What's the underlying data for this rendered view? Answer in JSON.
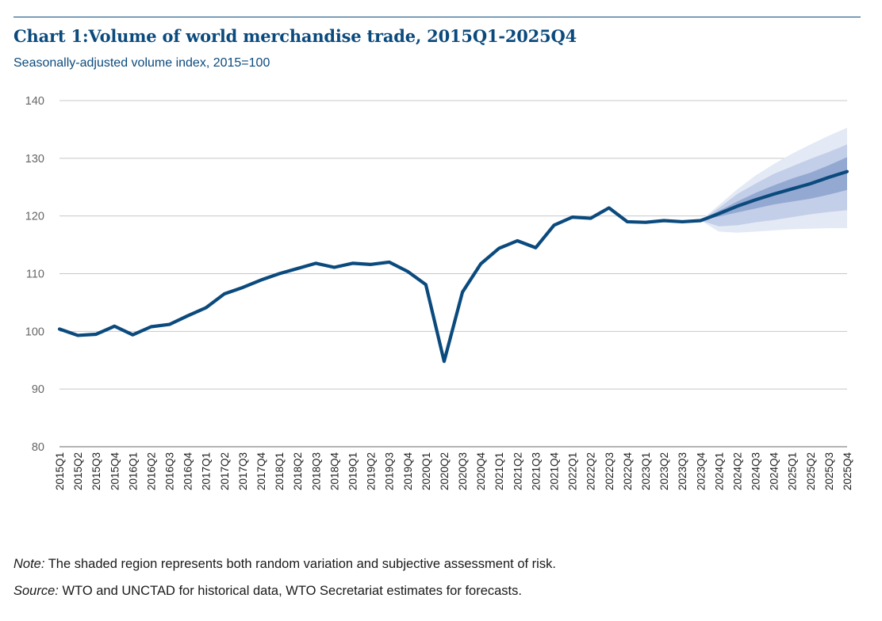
{
  "header": {
    "title": "Chart 1:Volume of world merchandise trade, 2015Q1-2025Q4",
    "subtitle": "Seasonally-adjusted volume index, 2015=100"
  },
  "footer": {
    "note_label": "Note:",
    "note_text": " The shaded region represents both random variation and subjective assessment of risk.",
    "source_label": "Source:",
    "source_text": " WTO and UNCTAD for historical data, WTO Secretariat estimates for forecasts."
  },
  "colors": {
    "line": "#0b4a7d",
    "grid": "#c8c8c8",
    "axis": "#888888",
    "tick_text": "#666666",
    "band_outer": "#e3e9f5",
    "band_mid": "#c3cfe8",
    "band_inner": "#94a9d2"
  },
  "chart_data": {
    "type": "line",
    "title": "Chart 1:Volume of world merchandise trade, 2015Q1-2025Q4",
    "subtitle": "Seasonally-adjusted volume index, 2015=100",
    "xlabel": "",
    "ylabel": "",
    "ylim": [
      80,
      140
    ],
    "yticks": [
      80,
      90,
      100,
      110,
      120,
      130,
      140
    ],
    "grid": true,
    "legend": "none",
    "categories": [
      "2015Q1",
      "2015Q2",
      "2015Q3",
      "2015Q4",
      "2016Q1",
      "2016Q2",
      "2016Q3",
      "2016Q4",
      "2017Q1",
      "2017Q2",
      "2017Q3",
      "2017Q4",
      "2018Q1",
      "2018Q2",
      "2018Q3",
      "2018Q4",
      "2019Q1",
      "2019Q2",
      "2019Q3",
      "2019Q4",
      "2020Q1",
      "2020Q2",
      "2020Q3",
      "2020Q4",
      "2021Q1",
      "2021Q2",
      "2021Q3",
      "2021Q4",
      "2022Q1",
      "2022Q2",
      "2022Q3",
      "2022Q4",
      "2023Q1",
      "2023Q2",
      "2023Q3",
      "2023Q4",
      "2024Q1",
      "2024Q2",
      "2024Q3",
      "2024Q4",
      "2025Q1",
      "2025Q2",
      "2025Q3",
      "2025Q4"
    ],
    "series": [
      {
        "values": [
          100.4,
          99.3,
          99.5,
          100.9,
          99.4,
          100.8,
          101.2,
          102.7,
          104.1,
          106.5,
          107.6,
          108.9,
          110.0,
          110.9,
          111.8,
          111.1,
          111.8,
          111.6,
          112.0,
          110.4,
          108.1,
          94.8,
          106.8,
          111.7,
          114.4,
          115.7,
          114.5,
          118.4,
          119.8,
          119.6,
          121.4,
          119.0,
          118.9,
          119.2,
          119.0,
          119.2,
          120.4,
          121.7,
          122.8,
          123.8,
          124.7,
          125.6,
          126.7,
          127.7
        ]
      }
    ],
    "forecast_bands": {
      "start_category": "2023Q4",
      "outer": {
        "upper": [
          119.2,
          121.9,
          124.6,
          127.0,
          129.0,
          130.8,
          132.4,
          133.9,
          135.3
        ],
        "lower": [
          119.2,
          117.3,
          117.1,
          117.3,
          117.5,
          117.7,
          117.8,
          117.9,
          117.9
        ]
      },
      "mid": {
        "upper": [
          119.2,
          121.4,
          123.8,
          125.6,
          127.3,
          128.6,
          129.9,
          131.1,
          132.4
        ],
        "lower": [
          119.2,
          118.2,
          118.4,
          118.9,
          119.3,
          119.8,
          120.3,
          120.7,
          121.0
        ]
      },
      "inner": {
        "upper": [
          119.2,
          120.9,
          122.5,
          124.0,
          125.3,
          126.5,
          127.5,
          128.8,
          130.2
        ],
        "lower": [
          119.2,
          119.9,
          120.6,
          121.3,
          122.0,
          122.5,
          123.0,
          123.7,
          124.5
        ]
      }
    }
  }
}
